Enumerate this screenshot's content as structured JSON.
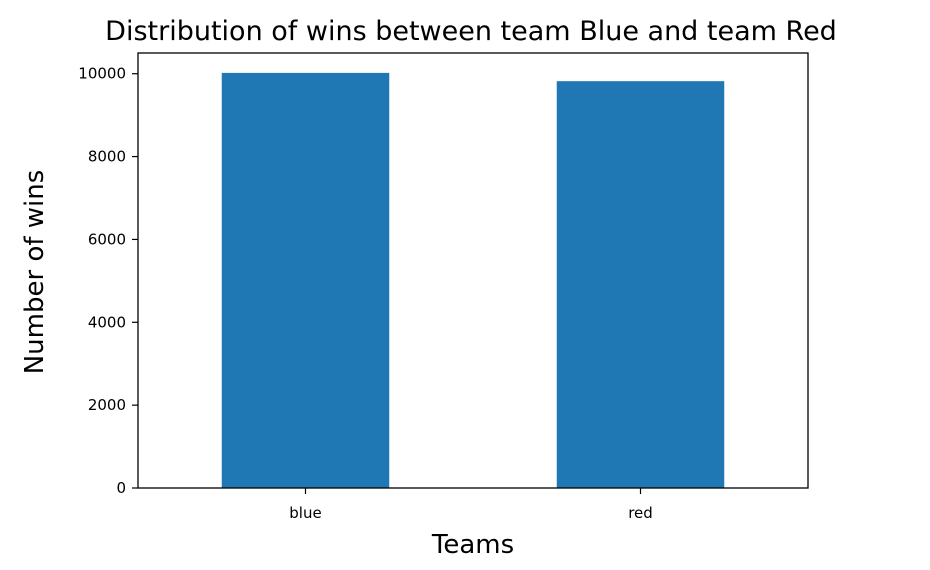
{
  "colors": {
    "bar": "#1f77b4",
    "axis": "#000000",
    "background": "#ffffff"
  },
  "chart_data": {
    "type": "bar",
    "title": "Distribution of wins between team Blue and team Red",
    "xlabel": "Teams",
    "ylabel": "Number of wins",
    "categories": [
      "blue",
      "red"
    ],
    "values": [
      10020,
      9820
    ],
    "ylim": [
      0,
      10500
    ],
    "yticks": [
      0,
      2000,
      4000,
      6000,
      8000,
      10000
    ],
    "ytick_labels": [
      "0",
      "2000",
      "4000",
      "6000",
      "8000",
      "10000"
    ],
    "grid": false,
    "legend": "none"
  }
}
